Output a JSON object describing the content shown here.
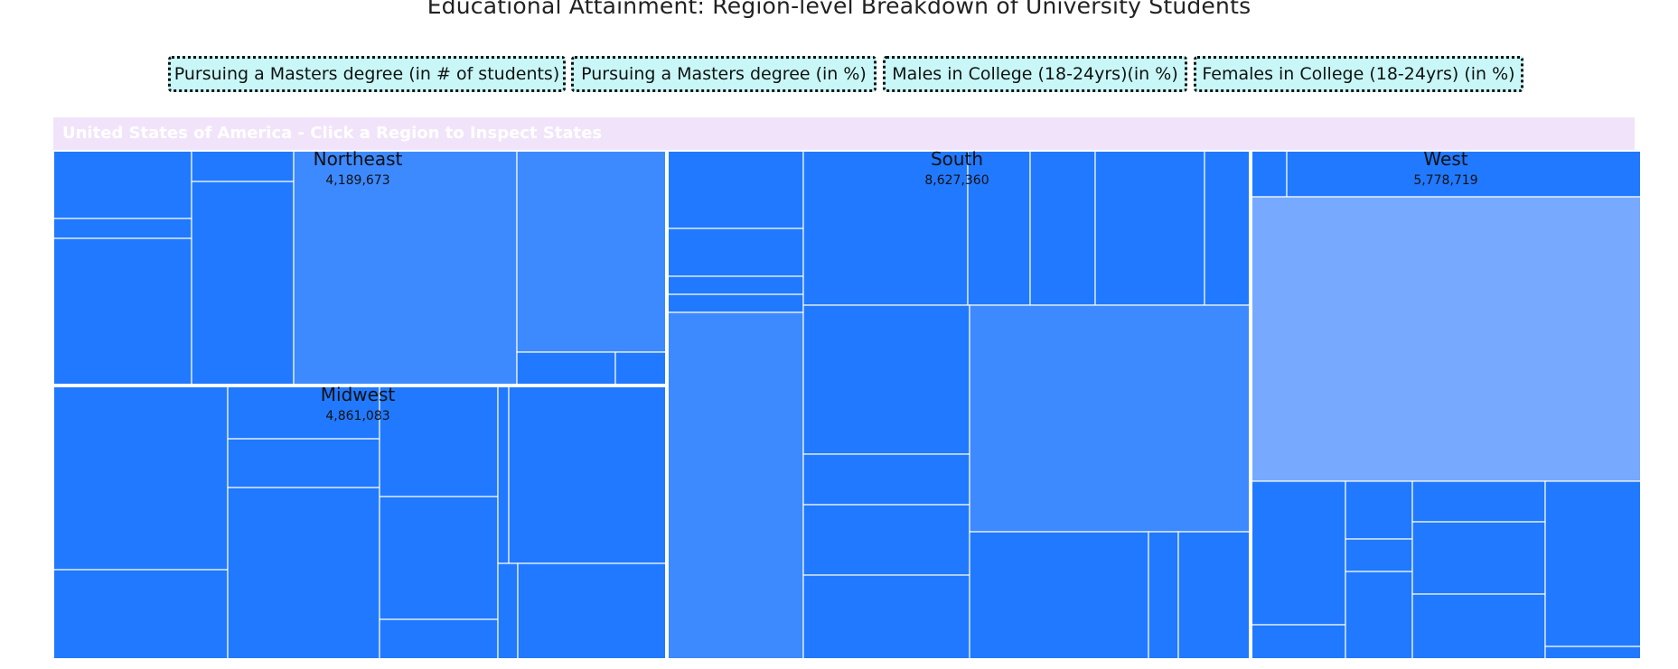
{
  "title": "Educational Attainment: Region-level Breakdown of University Students",
  "metric_buttons": [
    "Pursuing a Masters degree (in # of students)",
    "Pursuing a Masters degree (in %)",
    "Males in College (18-24yrs)(in %)",
    "Females in College (18-24yrs) (in %)"
  ],
  "breadcrumb": "United States of America - Click a Region to Inspect States",
  "colors": {
    "base": "#2079ff",
    "medium": "#3d89ff",
    "light": "#76a9ff",
    "button_bg": "#c9f7f7",
    "breadcrumb_bg": "#f1e4fa"
  },
  "chart_data": {
    "type": "treemap",
    "title": "Educational Attainment: Region-level Breakdown of University Students",
    "regions": [
      {
        "name": "Northeast",
        "value": "4,189,673"
      },
      {
        "name": "Midwest",
        "value": "4,861,083"
      },
      {
        "name": "South",
        "value": "8,627,360"
      },
      {
        "name": "West",
        "value": "5,778,719"
      }
    ]
  }
}
